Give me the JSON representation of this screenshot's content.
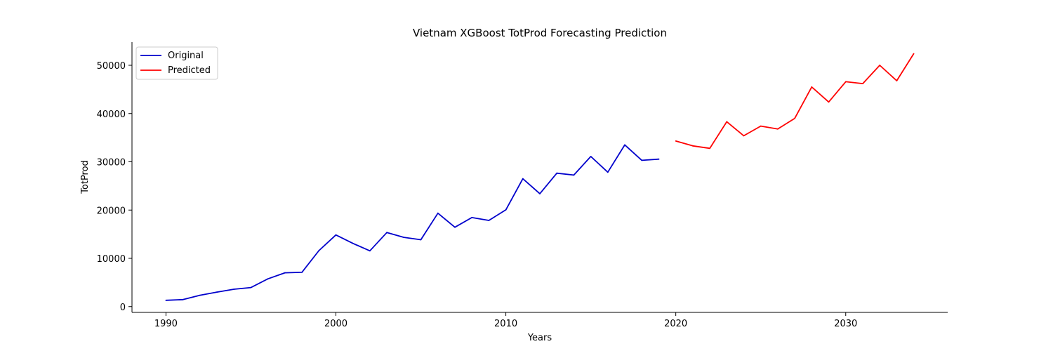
{
  "chart_data": {
    "type": "line",
    "title": "Vietnam XGBoost TotProd Forecasting Prediction",
    "xlabel": "Years",
    "ylabel": "TotProd",
    "xlim": [
      1988,
      2036
    ],
    "ylim": [
      -1200,
      54800
    ],
    "xticks": [
      1990,
      2000,
      2010,
      2020,
      2030
    ],
    "yticks": [
      0,
      10000,
      20000,
      30000,
      40000,
      50000
    ],
    "grid": false,
    "legend_position": "top-left",
    "series": [
      {
        "name": "Original",
        "color": "#0000cc",
        "x": [
          1990,
          1991,
          1992,
          1993,
          1994,
          1995,
          1996,
          1997,
          1998,
          1999,
          2000,
          2001,
          2002,
          2003,
          2004,
          2005,
          2006,
          2007,
          2008,
          2009,
          2010,
          2011,
          2012,
          2013,
          2014,
          2015,
          2016,
          2017,
          2018,
          2019
        ],
        "y": [
          1300,
          1450,
          2350,
          3000,
          3600,
          3950,
          5750,
          7000,
          7100,
          11600,
          14850,
          13100,
          11550,
          15350,
          14350,
          13850,
          19350,
          16450,
          18450,
          17850,
          20050,
          26500,
          23400,
          27650,
          27250,
          31100,
          27850,
          33500,
          30300,
          30550
        ]
      },
      {
        "name": "Predicted",
        "color": "#ff0000",
        "x": [
          2020,
          2021,
          2022,
          2023,
          2024,
          2025,
          2026,
          2027,
          2028,
          2029,
          2030,
          2031,
          2032,
          2033,
          2034
        ],
        "y": [
          34300,
          33300,
          32800,
          38300,
          35400,
          37400,
          36800,
          39000,
          45500,
          42400,
          46600,
          46200,
          50000,
          46800,
          52400
        ]
      }
    ]
  }
}
